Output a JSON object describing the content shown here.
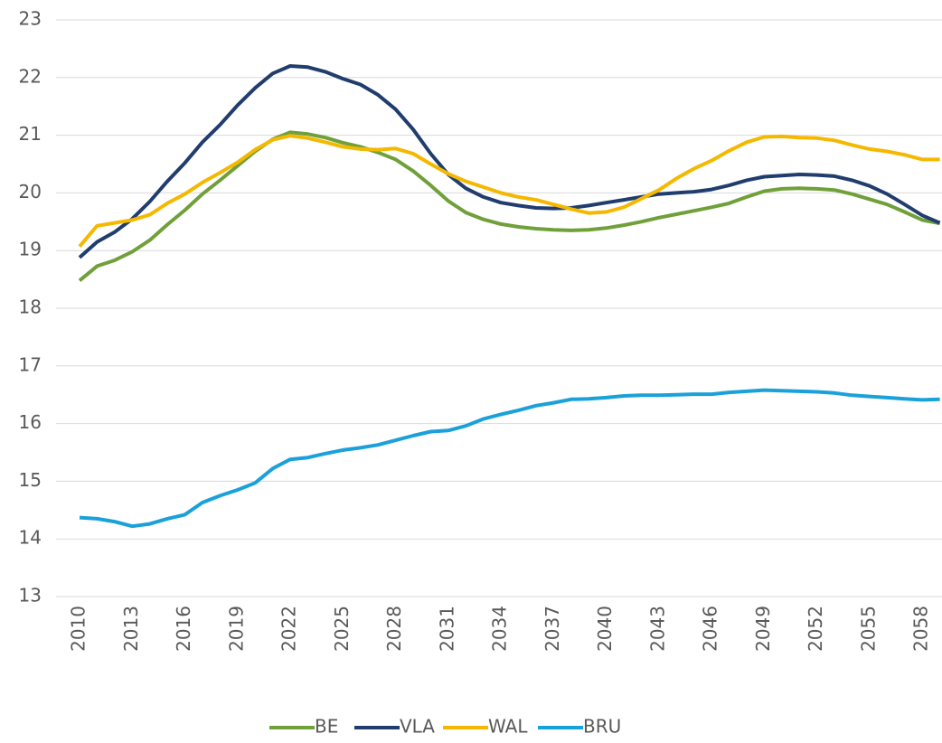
{
  "chart_data": {
    "type": "line",
    "categories": [
      "2010",
      null,
      null,
      "2013",
      null,
      null,
      "2016",
      null,
      null,
      "2019",
      null,
      null,
      "2022",
      null,
      null,
      "2025",
      null,
      null,
      "2028",
      null,
      null,
      "2031",
      null,
      null,
      "2034",
      null,
      null,
      "2037",
      null,
      null,
      "2040",
      null,
      null,
      "2043",
      null,
      null,
      "2046",
      null,
      null,
      "2049",
      null,
      null,
      "2052",
      null,
      null,
      "2055",
      null,
      null,
      "2058",
      null
    ],
    "series": [
      {
        "name": "BE",
        "color": "#70a03a",
        "values": [
          18.48,
          18.73,
          18.83,
          18.98,
          19.18,
          19.45,
          19.7,
          19.98,
          20.22,
          20.47,
          20.72,
          20.93,
          21.05,
          21.02,
          20.96,
          20.87,
          20.8,
          20.7,
          20.58,
          20.38,
          20.13,
          19.86,
          19.66,
          19.54,
          19.46,
          19.41,
          19.38,
          19.36,
          19.35,
          19.36,
          19.39,
          19.44,
          19.5,
          19.57,
          19.63,
          19.69,
          19.75,
          19.82,
          19.93,
          20.03,
          20.07,
          20.08,
          20.07,
          20.05,
          19.98,
          19.89,
          19.8,
          19.67,
          19.53,
          19.47
        ]
      },
      {
        "name": "VLA",
        "color": "#203d6d",
        "values": [
          18.88,
          19.15,
          19.32,
          19.55,
          19.85,
          20.2,
          20.52,
          20.88,
          21.18,
          21.52,
          21.82,
          22.07,
          22.2,
          22.18,
          22.1,
          21.98,
          21.88,
          21.7,
          21.45,
          21.1,
          20.68,
          20.32,
          20.08,
          19.93,
          19.83,
          19.78,
          19.74,
          19.73,
          19.74,
          19.78,
          19.83,
          19.88,
          19.93,
          19.98,
          20.0,
          20.02,
          20.06,
          20.13,
          20.22,
          20.28,
          20.3,
          20.32,
          20.31,
          20.29,
          20.22,
          20.12,
          19.98,
          19.8,
          19.61,
          19.48
        ]
      },
      {
        "name": "WAL",
        "color": "#f5b800",
        "values": [
          19.07,
          19.43,
          19.48,
          19.53,
          19.62,
          19.82,
          19.98,
          20.18,
          20.35,
          20.53,
          20.75,
          20.92,
          20.99,
          20.95,
          20.88,
          20.8,
          20.76,
          20.75,
          20.77,
          20.68,
          20.5,
          20.33,
          20.2,
          20.1,
          20.0,
          19.93,
          19.88,
          19.8,
          19.72,
          19.65,
          19.67,
          19.75,
          19.9,
          20.05,
          20.25,
          20.42,
          20.56,
          20.73,
          20.88,
          20.97,
          20.98,
          20.96,
          20.95,
          20.91,
          20.83,
          20.76,
          20.72,
          20.66,
          20.58,
          20.58
        ]
      },
      {
        "name": "BRU",
        "color": "#1ba1d9",
        "values": [
          14.37,
          14.35,
          14.3,
          14.22,
          14.26,
          14.35,
          14.42,
          14.63,
          14.75,
          14.85,
          14.97,
          15.22,
          15.38,
          15.41,
          15.48,
          15.54,
          15.58,
          15.63,
          15.71,
          15.79,
          15.86,
          15.88,
          15.96,
          16.08,
          16.16,
          16.23,
          16.31,
          16.36,
          16.42,
          16.43,
          16.45,
          16.48,
          16.49,
          16.49,
          16.5,
          16.51,
          16.51,
          16.54,
          16.56,
          16.58,
          16.57,
          16.56,
          16.55,
          16.53,
          16.49,
          16.47,
          16.45,
          16.43,
          16.41,
          16.42
        ]
      }
    ],
    "ylim": [
      13,
      23
    ],
    "yticks": [
      13,
      14,
      15,
      16,
      17,
      18,
      19,
      20,
      21,
      22,
      23
    ],
    "grid": true,
    "legend": "bottom"
  }
}
